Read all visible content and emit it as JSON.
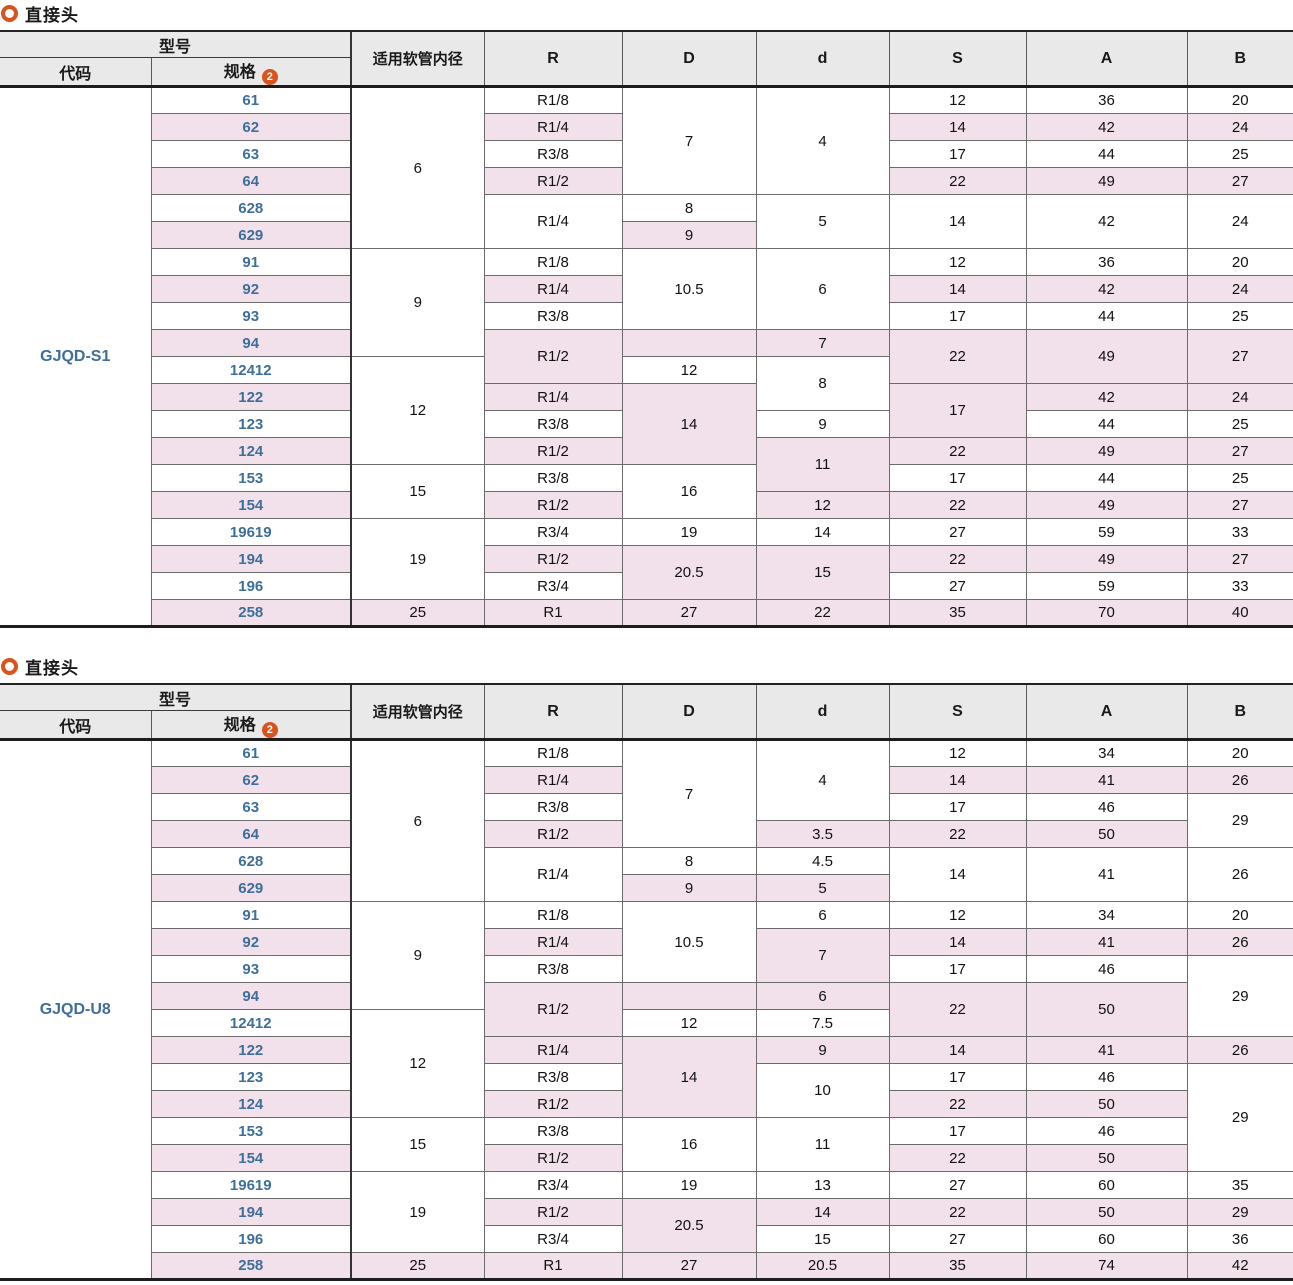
{
  "colors": {
    "accent_orange": "#d9531e",
    "link_blue": "#3e6f9a",
    "stripe_pink": "#f2e1ea",
    "header_gray": "#e9e9e9"
  },
  "header": {
    "model": "型号",
    "code": "代码",
    "spec": "规格",
    "spec_badge": "2",
    "hose": "适用软管内径",
    "col_r": "R",
    "col_D": "D",
    "col_d": "d",
    "col_s": "S",
    "col_a": "A",
    "col_b": "B"
  },
  "table1": {
    "title": "直接头",
    "code": "GJQD-S1",
    "rows": [
      {
        "spec": "61",
        "cells": [
          {
            "c": "bore",
            "v": "6",
            "rs": 6
          },
          {
            "c": "R",
            "v": "R1/8"
          },
          {
            "c": "D",
            "v": "7",
            "rs": 4
          },
          {
            "c": "d",
            "v": "4",
            "rs": 4
          },
          {
            "c": "S",
            "v": "12"
          },
          {
            "c": "A",
            "v": "36"
          },
          {
            "c": "B",
            "v": "20"
          }
        ]
      },
      {
        "spec": "62",
        "cells": [
          {
            "c": "R",
            "v": "R1/4"
          },
          {
            "c": "S",
            "v": "14"
          },
          {
            "c": "A",
            "v": "42"
          },
          {
            "c": "B",
            "v": "24"
          }
        ]
      },
      {
        "spec": "63",
        "cells": [
          {
            "c": "R",
            "v": "R3/8"
          },
          {
            "c": "S",
            "v": "17"
          },
          {
            "c": "A",
            "v": "44"
          },
          {
            "c": "B",
            "v": "25"
          }
        ]
      },
      {
        "spec": "64",
        "cells": [
          {
            "c": "R",
            "v": "R1/2"
          },
          {
            "c": "S",
            "v": "22"
          },
          {
            "c": "A",
            "v": "49"
          },
          {
            "c": "B",
            "v": "27"
          }
        ]
      },
      {
        "spec": "628",
        "cells": [
          {
            "c": "R",
            "v": "R1/4",
            "rs": 2
          },
          {
            "c": "D",
            "v": "8"
          },
          {
            "c": "d",
            "v": "5",
            "rs": 2
          },
          {
            "c": "S",
            "v": "14",
            "rs": 2
          },
          {
            "c": "A",
            "v": "42",
            "rs": 2
          },
          {
            "c": "B",
            "v": "24",
            "rs": 2
          }
        ]
      },
      {
        "spec": "629",
        "cells": [
          {
            "c": "D",
            "v": "9"
          }
        ]
      },
      {
        "spec": "91",
        "cells": [
          {
            "c": "bore",
            "v": "9",
            "rs": 4
          },
          {
            "c": "R",
            "v": "R1/8"
          },
          {
            "c": "D",
            "v": "10.5",
            "rs": 3
          },
          {
            "c": "d",
            "v": "6",
            "rs": 3
          },
          {
            "c": "S",
            "v": "12"
          },
          {
            "c": "A",
            "v": "36"
          },
          {
            "c": "B",
            "v": "20"
          }
        ]
      },
      {
        "spec": "92",
        "cells": [
          {
            "c": "R",
            "v": "R1/4"
          },
          {
            "c": "S",
            "v": "14"
          },
          {
            "c": "A",
            "v": "42"
          },
          {
            "c": "B",
            "v": "24"
          }
        ]
      },
      {
        "spec": "93",
        "cells": [
          {
            "c": "R",
            "v": "R3/8"
          },
          {
            "c": "S",
            "v": "17"
          },
          {
            "c": "A",
            "v": "44"
          },
          {
            "c": "B",
            "v": "25"
          }
        ]
      },
      {
        "spec": "94",
        "cells": [
          {
            "c": "R",
            "v": "R1/2",
            "rs": 2
          },
          {
            "c": "D",
            "v": ""
          },
          {
            "c": "d",
            "v": "7"
          },
          {
            "c": "S",
            "v": "22",
            "rs": 2
          },
          {
            "c": "A",
            "v": "49",
            "rs": 2
          },
          {
            "c": "B",
            "v": "27",
            "rs": 2
          }
        ]
      },
      {
        "spec": "12412",
        "cells": [
          {
            "c": "bore",
            "v": "12",
            "rs": 4
          },
          {
            "c": "D",
            "v": "12"
          },
          {
            "c": "d",
            "v": "8",
            "rs": 2
          }
        ]
      },
      {
        "spec": "122",
        "cells": [
          {
            "c": "R",
            "v": "R1/4"
          },
          {
            "c": "D",
            "v": "14",
            "rs": 3
          },
          {
            "c": "S",
            "v": "17",
            "rs": 2
          },
          {
            "c": "A",
            "v": "42"
          },
          {
            "c": "B",
            "v": "24"
          }
        ]
      },
      {
        "spec": "123",
        "cells": [
          {
            "c": "R",
            "v": "R3/8"
          },
          {
            "c": "d",
            "v": "9"
          },
          {
            "c": "A",
            "v": "44"
          },
          {
            "c": "B",
            "v": "25"
          }
        ]
      },
      {
        "spec": "124",
        "cells": [
          {
            "c": "R",
            "v": "R1/2"
          },
          {
            "c": "d",
            "v": "11",
            "rs": 2
          },
          {
            "c": "S",
            "v": "22"
          },
          {
            "c": "A",
            "v": "49"
          },
          {
            "c": "B",
            "v": "27"
          }
        ]
      },
      {
        "spec": "153",
        "cells": [
          {
            "c": "bore",
            "v": "15",
            "rs": 2
          },
          {
            "c": "R",
            "v": "R3/8"
          },
          {
            "c": "D",
            "v": "16",
            "rs": 2
          },
          {
            "c": "S",
            "v": "17"
          },
          {
            "c": "A",
            "v": "44"
          },
          {
            "c": "B",
            "v": "25"
          }
        ]
      },
      {
        "spec": "154",
        "cells": [
          {
            "c": "R",
            "v": "R1/2"
          },
          {
            "c": "d",
            "v": "12"
          },
          {
            "c": "S",
            "v": "22"
          },
          {
            "c": "A",
            "v": "49"
          },
          {
            "c": "B",
            "v": "27"
          }
        ]
      },
      {
        "spec": "19619",
        "cells": [
          {
            "c": "bore",
            "v": "19",
            "rs": 3
          },
          {
            "c": "R",
            "v": "R3/4"
          },
          {
            "c": "D",
            "v": "19"
          },
          {
            "c": "d",
            "v": "14"
          },
          {
            "c": "S",
            "v": "27"
          },
          {
            "c": "A",
            "v": "59"
          },
          {
            "c": "B",
            "v": "33"
          }
        ]
      },
      {
        "spec": "194",
        "cells": [
          {
            "c": "R",
            "v": "R1/2"
          },
          {
            "c": "D",
            "v": "20.5",
            "rs": 2
          },
          {
            "c": "d",
            "v": "15",
            "rs": 2
          },
          {
            "c": "S",
            "v": "22"
          },
          {
            "c": "A",
            "v": "49"
          },
          {
            "c": "B",
            "v": "27"
          }
        ]
      },
      {
        "spec": "196",
        "cells": [
          {
            "c": "R",
            "v": "R3/4"
          },
          {
            "c": "S",
            "v": "27"
          },
          {
            "c": "A",
            "v": "59"
          },
          {
            "c": "B",
            "v": "33"
          }
        ]
      },
      {
        "spec": "258",
        "cells": [
          {
            "c": "bore",
            "v": "25"
          },
          {
            "c": "R",
            "v": "R1"
          },
          {
            "c": "D",
            "v": "27"
          },
          {
            "c": "d",
            "v": "22"
          },
          {
            "c": "S",
            "v": "35"
          },
          {
            "c": "A",
            "v": "70"
          },
          {
            "c": "B",
            "v": "40"
          }
        ]
      }
    ]
  },
  "table2": {
    "title": "直接头",
    "code": "GJQD-U8",
    "rows": [
      {
        "spec": "61",
        "cells": [
          {
            "c": "bore",
            "v": "6",
            "rs": 6
          },
          {
            "c": "R",
            "v": "R1/8"
          },
          {
            "c": "D",
            "v": "7",
            "rs": 4
          },
          {
            "c": "d",
            "v": "4",
            "rs": 3
          },
          {
            "c": "S",
            "v": "12"
          },
          {
            "c": "A",
            "v": "34"
          },
          {
            "c": "B",
            "v": "20"
          }
        ]
      },
      {
        "spec": "62",
        "cells": [
          {
            "c": "R",
            "v": "R1/4"
          },
          {
            "c": "S",
            "v": "14"
          },
          {
            "c": "A",
            "v": "41"
          },
          {
            "c": "B",
            "v": "26"
          }
        ]
      },
      {
        "spec": "63",
        "cells": [
          {
            "c": "R",
            "v": "R3/8"
          },
          {
            "c": "S",
            "v": "17"
          },
          {
            "c": "A",
            "v": "46"
          },
          {
            "c": "B",
            "v": "29",
            "rs": 2
          }
        ]
      },
      {
        "spec": "64",
        "cells": [
          {
            "c": "R",
            "v": "R1/2"
          },
          {
            "c": "d",
            "v": "3.5"
          },
          {
            "c": "S",
            "v": "22"
          },
          {
            "c": "A",
            "v": "50"
          }
        ]
      },
      {
        "spec": "628",
        "cells": [
          {
            "c": "R",
            "v": "R1/4",
            "rs": 2
          },
          {
            "c": "D",
            "v": "8"
          },
          {
            "c": "d",
            "v": "4.5"
          },
          {
            "c": "S",
            "v": "14",
            "rs": 2
          },
          {
            "c": "A",
            "v": "41",
            "rs": 2
          },
          {
            "c": "B",
            "v": "26",
            "rs": 2
          }
        ]
      },
      {
        "spec": "629",
        "cells": [
          {
            "c": "D",
            "v": "9"
          },
          {
            "c": "d",
            "v": "5"
          }
        ]
      },
      {
        "spec": "91",
        "cells": [
          {
            "c": "bore",
            "v": "9",
            "rs": 4
          },
          {
            "c": "R",
            "v": "R1/8"
          },
          {
            "c": "D",
            "v": "10.5",
            "rs": 3
          },
          {
            "c": "d",
            "v": "6"
          },
          {
            "c": "S",
            "v": "12"
          },
          {
            "c": "A",
            "v": "34"
          },
          {
            "c": "B",
            "v": "20"
          }
        ]
      },
      {
        "spec": "92",
        "cells": [
          {
            "c": "R",
            "v": "R1/4"
          },
          {
            "c": "d",
            "v": "7",
            "rs": 2
          },
          {
            "c": "S",
            "v": "14"
          },
          {
            "c": "A",
            "v": "41"
          },
          {
            "c": "B",
            "v": "26"
          }
        ]
      },
      {
        "spec": "93",
        "cells": [
          {
            "c": "R",
            "v": "R3/8"
          },
          {
            "c": "S",
            "v": "17"
          },
          {
            "c": "A",
            "v": "46"
          },
          {
            "c": "B",
            "v": "29",
            "rs": 3
          }
        ]
      },
      {
        "spec": "94",
        "cells": [
          {
            "c": "R",
            "v": "R1/2",
            "rs": 2
          },
          {
            "c": "D",
            "v": ""
          },
          {
            "c": "d",
            "v": "6"
          },
          {
            "c": "S",
            "v": "22",
            "rs": 2
          },
          {
            "c": "A",
            "v": "50",
            "rs": 2
          }
        ]
      },
      {
        "spec": "12412",
        "cells": [
          {
            "c": "bore",
            "v": "12",
            "rs": 4
          },
          {
            "c": "D",
            "v": "12"
          },
          {
            "c": "d",
            "v": "7.5"
          }
        ]
      },
      {
        "spec": "122",
        "cells": [
          {
            "c": "R",
            "v": "R1/4"
          },
          {
            "c": "D",
            "v": "14",
            "rs": 3
          },
          {
            "c": "d",
            "v": "9"
          },
          {
            "c": "S",
            "v": "14"
          },
          {
            "c": "A",
            "v": "41"
          },
          {
            "c": "B",
            "v": "26"
          }
        ]
      },
      {
        "spec": "123",
        "cells": [
          {
            "c": "R",
            "v": "R3/8"
          },
          {
            "c": "d",
            "v": "10",
            "rs": 2
          },
          {
            "c": "S",
            "v": "17"
          },
          {
            "c": "A",
            "v": "46"
          },
          {
            "c": "B",
            "v": "29",
            "rs": 4
          }
        ]
      },
      {
        "spec": "124",
        "cells": [
          {
            "c": "R",
            "v": "R1/2"
          },
          {
            "c": "S",
            "v": "22"
          },
          {
            "c": "A",
            "v": "50"
          }
        ]
      },
      {
        "spec": "153",
        "cells": [
          {
            "c": "bore",
            "v": "15",
            "rs": 2
          },
          {
            "c": "R",
            "v": "R3/8"
          },
          {
            "c": "D",
            "v": "16",
            "rs": 2
          },
          {
            "c": "d",
            "v": "11",
            "rs": 2
          },
          {
            "c": "S",
            "v": "17"
          },
          {
            "c": "A",
            "v": "46"
          }
        ]
      },
      {
        "spec": "154",
        "cells": [
          {
            "c": "R",
            "v": "R1/2"
          },
          {
            "c": "S",
            "v": "22"
          },
          {
            "c": "A",
            "v": "50"
          }
        ]
      },
      {
        "spec": "19619",
        "cells": [
          {
            "c": "bore",
            "v": "19",
            "rs": 3
          },
          {
            "c": "R",
            "v": "R3/4"
          },
          {
            "c": "D",
            "v": "19"
          },
          {
            "c": "d",
            "v": "13"
          },
          {
            "c": "S",
            "v": "27"
          },
          {
            "c": "A",
            "v": "60"
          },
          {
            "c": "B",
            "v": "35"
          }
        ]
      },
      {
        "spec": "194",
        "cells": [
          {
            "c": "R",
            "v": "R1/2"
          },
          {
            "c": "D",
            "v": "20.5",
            "rs": 2
          },
          {
            "c": "d",
            "v": "14"
          },
          {
            "c": "S",
            "v": "22"
          },
          {
            "c": "A",
            "v": "50"
          },
          {
            "c": "B",
            "v": "29"
          }
        ]
      },
      {
        "spec": "196",
        "cells": [
          {
            "c": "R",
            "v": "R3/4"
          },
          {
            "c": "d",
            "v": "15"
          },
          {
            "c": "S",
            "v": "27"
          },
          {
            "c": "A",
            "v": "60"
          },
          {
            "c": "B",
            "v": "36"
          }
        ]
      },
      {
        "spec": "258",
        "cells": [
          {
            "c": "bore",
            "v": "25"
          },
          {
            "c": "R",
            "v": "R1"
          },
          {
            "c": "D",
            "v": "27"
          },
          {
            "c": "d",
            "v": "20.5"
          },
          {
            "c": "S",
            "v": "35"
          },
          {
            "c": "A",
            "v": "74"
          },
          {
            "c": "B",
            "v": "42"
          }
        ]
      }
    ]
  }
}
